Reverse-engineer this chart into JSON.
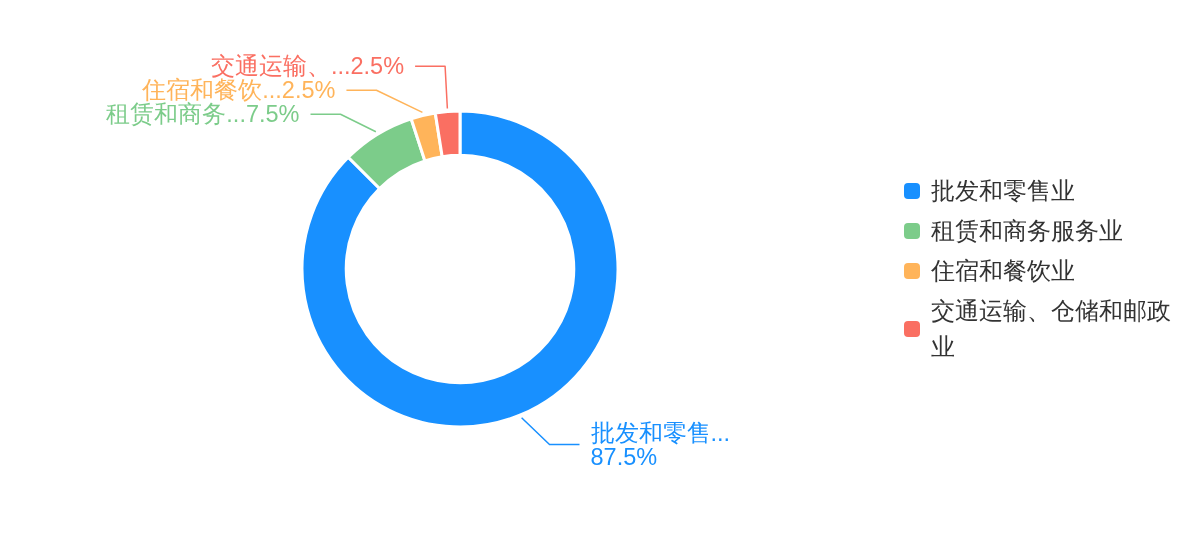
{
  "chart_data": {
    "type": "donut",
    "categories": [
      "批发和零售业",
      "租赁和商务服务业",
      "住宿和餐饮业",
      "交通运输、仓储和邮政业"
    ],
    "values": [
      87.5,
      7.5,
      2.5,
      2.5
    ],
    "colors": [
      "#1890ff",
      "#7ccc8a",
      "#ffb45a",
      "#fa6f62"
    ],
    "value_labels": [
      "87.5%",
      "7.5%",
      "2.5%",
      "2.5%"
    ],
    "annotations": [
      "批发和零售...",
      "租赁和商务...",
      "住宿和餐饮...",
      "交通运输、..."
    ],
    "legend": "right"
  }
}
